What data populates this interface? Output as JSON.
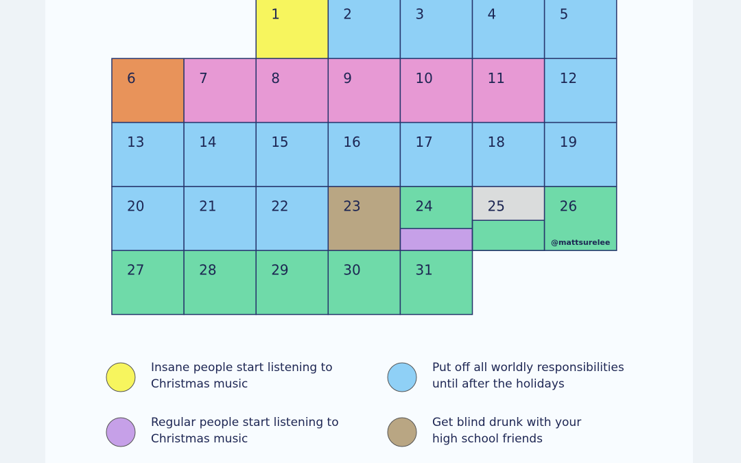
{
  "cells": [
    {
      "day": "1",
      "color": "#f7f55e"
    },
    {
      "day": "2",
      "color": "#8fd0f6"
    },
    {
      "day": "3",
      "color": "#8fd0f6"
    },
    {
      "day": "4",
      "color": "#8fd0f6"
    },
    {
      "day": "5",
      "color": "#8fd0f6"
    },
    {
      "day": "6",
      "color": "#e8935a"
    },
    {
      "day": "7",
      "color": "#e799d4"
    },
    {
      "day": "8",
      "color": "#e799d4"
    },
    {
      "day": "9",
      "color": "#e799d4"
    },
    {
      "day": "10",
      "color": "#e799d4"
    },
    {
      "day": "11",
      "color": "#e799d4"
    },
    {
      "day": "12",
      "color": "#8fd0f6"
    },
    {
      "day": "13",
      "color": "#8fd0f6"
    },
    {
      "day": "14",
      "color": "#8fd0f6"
    },
    {
      "day": "15",
      "color": "#8fd0f6"
    },
    {
      "day": "16",
      "color": "#8fd0f6"
    },
    {
      "day": "17",
      "color": "#8fd0f6"
    },
    {
      "day": "18",
      "color": "#8fd0f6"
    },
    {
      "day": "19",
      "color": "#8fd0f6"
    },
    {
      "day": "20",
      "color": "#8fd0f6"
    },
    {
      "day": "21",
      "color": "#8fd0f6"
    },
    {
      "day": "22",
      "color": "#8fd0f6"
    },
    {
      "day": "23",
      "color": "#b9a683"
    },
    {
      "day": "24",
      "color": "#6fdaa9",
      "bottom_color": "#c6a0e8"
    },
    {
      "day": "25",
      "color": "#dadcdc",
      "bottom_color": "#6fdaa9"
    },
    {
      "day": "26",
      "color": "#6fdaa9"
    },
    {
      "day": "27",
      "color": "#6fdaa9"
    },
    {
      "day": "28",
      "color": "#6fdaa9"
    },
    {
      "day": "29",
      "color": "#6fdaa9"
    },
    {
      "day": "30",
      "color": "#6fdaa9"
    },
    {
      "day": "31",
      "color": "#6fdaa9"
    }
  ],
  "credit": "@mattsurelee",
  "legend": [
    {
      "label": [
        "Insane people start listening to",
        "Christmas music"
      ],
      "color": "#f7f55e"
    },
    {
      "label": [
        "Put off all worldly responsibilities",
        "until after the holidays"
      ],
      "color": "#8fd0f6"
    },
    {
      "label": [
        "Regular people start listening to",
        "Christmas music"
      ],
      "color": "#c6a0e8"
    },
    {
      "label": [
        "Get blind drunk with your",
        "high school friends"
      ],
      "color": "#b9a683"
    }
  ]
}
